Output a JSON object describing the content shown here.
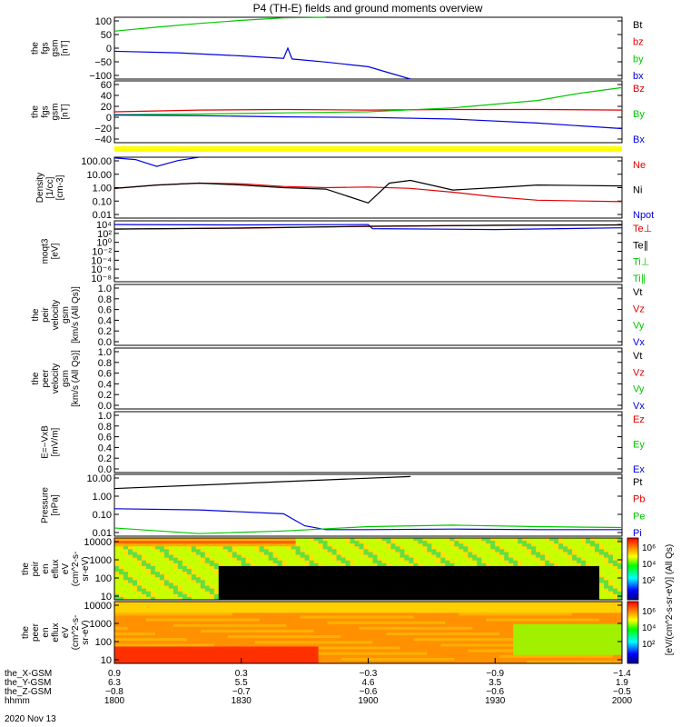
{
  "title": "P4 (TH-E) fields and ground moments overview",
  "colors": {
    "black": "#000000",
    "red": "#e00000",
    "green": "#00c800",
    "blue": "#0000e0",
    "yellow": "#ffff00"
  },
  "chart_data": [
    {
      "type": "line",
      "ylabel_lines": [
        "the",
        "fgs",
        "gsm",
        "[nT]"
      ],
      "ylim": [
        -100,
        100
      ],
      "yticks": [
        "100",
        "50",
        "0",
        "−50",
        "−100"
      ],
      "legend": [
        {
          "label": "Bt",
          "color": "#000000"
        },
        {
          "label": "bz",
          "color": "#e00000"
        },
        {
          "label": "by",
          "color": "#00c800"
        },
        {
          "label": "bx",
          "color": "#0000e0"
        }
      ],
      "series": [
        {
          "color": "#00c800",
          "x": [
            "18:00",
            "18:10",
            "18:20",
            "18:30",
            "18:40",
            "18:50"
          ],
          "y": [
            55,
            68,
            80,
            90,
            98,
            102
          ]
        },
        {
          "color": "#0000e0",
          "x": [
            "18:00",
            "18:15",
            "18:30",
            "18:40",
            "18:41",
            "18:42",
            "18:50",
            "19:00",
            "19:10"
          ],
          "y": [
            -10,
            -15,
            -25,
            -33,
            0,
            -35,
            -45,
            -60,
            -100
          ]
        }
      ]
    },
    {
      "type": "line",
      "ylabel_lines": [
        "the",
        "fgs",
        "gsm",
        "[nT]"
      ],
      "ylim": [
        -50,
        60
      ],
      "yticks": [
        "60",
        "40",
        "20",
        "0",
        "−20",
        "−40"
      ],
      "legend": [
        {
          "label": "Bz",
          "color": "#e00000"
        },
        {
          "label": "By",
          "color": "#00c800"
        },
        {
          "label": "Bx",
          "color": "#0000e0"
        }
      ],
      "series": [
        {
          "color": "#e00000",
          "x": [
            "18:00",
            "18:20",
            "18:40",
            "19:00",
            "19:20",
            "19:40",
            "20:00"
          ],
          "y": [
            5,
            8,
            9,
            8,
            9,
            9,
            8
          ]
        },
        {
          "color": "#00c800",
          "x": [
            "18:00",
            "18:20",
            "18:40",
            "19:00",
            "19:20",
            "19:40",
            "19:50",
            "20:00"
          ],
          "y": [
            0,
            1,
            3,
            5,
            12,
            25,
            38,
            48
          ]
        },
        {
          "color": "#0000e0",
          "x": [
            "18:00",
            "18:20",
            "18:40",
            "19:00",
            "19:20",
            "19:40",
            "20:00"
          ],
          "y": [
            -1,
            -2,
            -4,
            -5,
            -8,
            -15,
            -25
          ]
        }
      ]
    },
    {
      "type": "line",
      "ylabel_lines": [
        "Density",
        "[1/cc]",
        "[cm-3]"
      ],
      "ylog": true,
      "ylim": [
        0.01,
        100
      ],
      "yticks": [
        "100.00",
        "10.00",
        "1.00",
        "0.10",
        "0.01"
      ],
      "legend": [
        {
          "label": "Ne",
          "color": "#e00000"
        },
        {
          "label": "Ni",
          "color": "#000000"
        },
        {
          "label": "Npot",
          "color": "#0000e0"
        }
      ],
      "series": [
        {
          "color": "#0000e0",
          "x": [
            "18:00",
            "18:05",
            "18:10",
            "18:15",
            "18:20"
          ],
          "y": [
            90,
            70,
            25,
            60,
            100
          ]
        },
        {
          "color": "#e00000",
          "x": [
            "18:00",
            "18:10",
            "18:20",
            "18:30",
            "18:40",
            "18:50",
            "19:00",
            "19:10",
            "19:20",
            "19:30",
            "19:40",
            "20:00"
          ],
          "y": [
            0.9,
            1.5,
            2.0,
            1.8,
            1.2,
            1.0,
            1.1,
            0.9,
            0.5,
            0.25,
            0.15,
            0.12
          ]
        },
        {
          "color": "#000000",
          "x": [
            "18:00",
            "18:10",
            "18:20",
            "18:30",
            "18:40",
            "18:50",
            "19:00",
            "19:05",
            "19:10",
            "19:20",
            "19:30",
            "19:40",
            "20:00"
          ],
          "y": [
            0.9,
            1.5,
            2.0,
            1.5,
            1.0,
            0.8,
            0.1,
            2.0,
            3.0,
            0.7,
            1.0,
            1.5,
            1.3
          ]
        }
      ]
    },
    {
      "type": "line",
      "ylabel_lines": [
        "moqt3",
        "[eV]"
      ],
      "ylog": true,
      "yticks": [
        "10⁴",
        "10²",
        "10⁰",
        "10⁻²",
        "10⁻⁴",
        "10⁻⁶",
        "10⁻⁸"
      ],
      "legend": [
        {
          "label": "Te⊥",
          "color": "#e00000"
        },
        {
          "label": "Te∥",
          "color": "#000000"
        },
        {
          "label": "Ti⊥",
          "color": "#00c800"
        },
        {
          "label": "Ti∥",
          "color": "#00c800"
        }
      ],
      "series": [
        {
          "color": "#0000e0",
          "x": [
            "18:00",
            "18:30",
            "19:00",
            "19:01",
            "19:30",
            "20:00"
          ],
          "y": [
            3000,
            2500,
            3000,
            400,
            250,
            600
          ]
        },
        {
          "color": "#e00000",
          "x": [
            "18:00",
            "18:30",
            "19:00",
            "19:30",
            "20:00"
          ],
          "y": [
            300,
            500,
            1200,
            2000,
            2500
          ]
        },
        {
          "color": "#000000",
          "x": [
            "18:00",
            "18:30",
            "19:00",
            "19:30",
            "20:00"
          ],
          "y": [
            320,
            550,
            1300,
            2100,
            2600
          ]
        }
      ]
    },
    {
      "type": "line",
      "ylabel_lines": [
        "the",
        "peir",
        "velocity",
        "gsm",
        "[km/s (All Qs)]"
      ],
      "ylim": [
        0,
        1
      ],
      "yticks": [
        "1.0",
        "0.8",
        "0.6",
        "0.4",
        "0.2",
        "0.0"
      ],
      "legend": [
        {
          "label": "Vt",
          "color": "#000000"
        },
        {
          "label": "Vz",
          "color": "#e00000"
        },
        {
          "label": "Vy",
          "color": "#00c800"
        },
        {
          "label": "Vx",
          "color": "#0000e0"
        }
      ],
      "series": []
    },
    {
      "type": "line",
      "ylabel_lines": [
        "the",
        "peer",
        "velocity",
        "gsm",
        "[km/s (All Qs)]"
      ],
      "ylim": [
        0,
        1
      ],
      "yticks": [
        "1.0",
        "0.8",
        "0.6",
        "0.4",
        "0.2",
        "0.0"
      ],
      "legend": [
        {
          "label": "Vt",
          "color": "#000000"
        },
        {
          "label": "Vz",
          "color": "#e00000"
        },
        {
          "label": "Vy",
          "color": "#00c800"
        },
        {
          "label": "Vx",
          "color": "#0000e0"
        }
      ],
      "series": []
    },
    {
      "type": "line",
      "ylabel_lines": [
        "E=−VxB",
        "[mV/m]"
      ],
      "ylim": [
        0,
        1
      ],
      "yticks": [
        "1.0",
        "0.8",
        "0.6",
        "0.4",
        "0.2",
        "0.0"
      ],
      "legend": [
        {
          "label": "Ez",
          "color": "#e00000"
        },
        {
          "label": "Ey",
          "color": "#00c800"
        },
        {
          "label": "Ex",
          "color": "#0000e0"
        }
      ],
      "series": []
    },
    {
      "type": "line",
      "ylabel_lines": [
        "Pressure",
        "[nPa]"
      ],
      "ylog": true,
      "ylim": [
        0.005,
        20
      ],
      "yticks": [
        "10.00",
        "1.00",
        "0.10",
        "0.01"
      ],
      "legend": [
        {
          "label": "Pt",
          "color": "#000000"
        },
        {
          "label": "Pb",
          "color": "#e00000"
        },
        {
          "label": "Pe",
          "color": "#00c800"
        },
        {
          "label": "Pi",
          "color": "#0000e0"
        }
      ],
      "series": [
        {
          "color": "#000000",
          "x": [
            "18:00",
            "18:30",
            "19:00",
            "19:10"
          ],
          "y": [
            3,
            6,
            12,
            15
          ]
        },
        {
          "color": "#0000e0",
          "x": [
            "18:00",
            "18:20",
            "18:40",
            "18:45",
            "18:50",
            "19:00",
            "19:20",
            "19:40",
            "20:00"
          ],
          "y": [
            0.2,
            0.17,
            0.1,
            0.02,
            0.012,
            0.012,
            0.013,
            0.012,
            0.012
          ]
        },
        {
          "color": "#00c800",
          "x": [
            "18:00",
            "18:20",
            "18:40",
            "19:00",
            "19:20",
            "19:40",
            "20:00"
          ],
          "y": [
            0.015,
            0.007,
            0.01,
            0.018,
            0.022,
            0.018,
            0.016
          ]
        }
      ]
    },
    {
      "type": "heatmap",
      "ylabel_lines": [
        "the",
        "peir",
        "en",
        "eflux",
        "eV",
        "(cm^2-s-",
        "sr-eV)"
      ],
      "ylog": true,
      "yticks": [
        "10000",
        "1000",
        "100",
        "10"
      ]
    },
    {
      "type": "heatmap",
      "ylabel_lines": [
        "the",
        "peer",
        "en",
        "eflux",
        "eV",
        "(cm^2-s-",
        "sr-eV)"
      ],
      "ylog": true,
      "yticks": [
        "10000",
        "1000",
        "100",
        "10"
      ]
    }
  ],
  "colorbar": {
    "label": "[eV/(cm^2-s-sr-eV)] (All Qs)",
    "ticks": [
      "10⁶",
      "10⁴",
      "10²"
    ]
  },
  "xaxis": {
    "row_labels": [
      "the_X-GSM",
      "the_Y-GSM",
      "the_Z-GSM",
      "hhmm"
    ],
    "date": "2020 Nov 13",
    "ticks": [
      {
        "values": [
          "0.9",
          "6.3",
          "−0.8",
          "1800"
        ]
      },
      {
        "values": [
          "0.3",
          "5.5",
          "−0.7",
          "1830"
        ]
      },
      {
        "values": [
          "−0.3",
          "4.6",
          "−0.6",
          "1900"
        ]
      },
      {
        "values": [
          "−0.9",
          "3.5",
          "−0.6",
          "1930"
        ]
      },
      {
        "values": [
          "−1.4",
          "1.9",
          "−0.5",
          "2000"
        ]
      }
    ]
  }
}
